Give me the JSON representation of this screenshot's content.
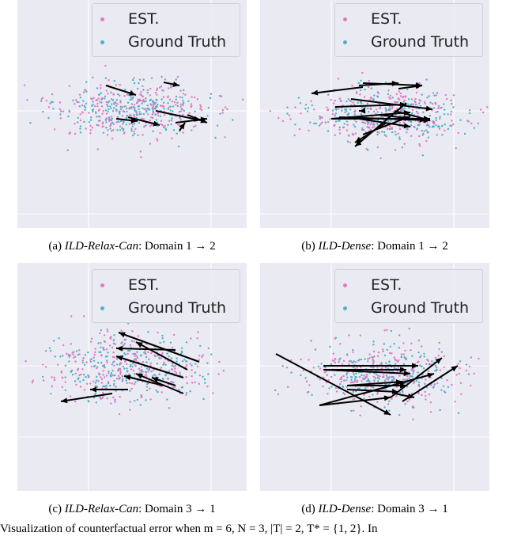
{
  "legend": {
    "est_label": "EST.",
    "gt_label": "Ground Truth"
  },
  "colors": {
    "est": "#e377c2",
    "gt": "#4fb0c6",
    "panel_bg": "#eaeaf2",
    "grid": "#ffffff",
    "arrow": "#000000"
  },
  "panels": [
    {
      "id": "a",
      "caption_prefix": "(a) ",
      "caption_method": "ILD-Relax-Can",
      "caption_rest": ": Domain 1 → 2"
    },
    {
      "id": "b",
      "caption_prefix": "(b) ",
      "caption_method": "ILD-Dense",
      "caption_rest": ": Domain 1 → 2"
    },
    {
      "id": "c",
      "caption_prefix": "(c) ",
      "caption_method": "ILD-Relax-Can",
      "caption_rest": ": Domain 3 → 1"
    },
    {
      "id": "d",
      "caption_prefix": "(d) ",
      "caption_method": "ILD-Dense",
      "caption_rest": ": Domain 3 → 1"
    }
  ],
  "bottom_text": "Visualization of counterfactual error when m = 6, N = 3, |T| = 2, T* = {1, 2}. In"
}
